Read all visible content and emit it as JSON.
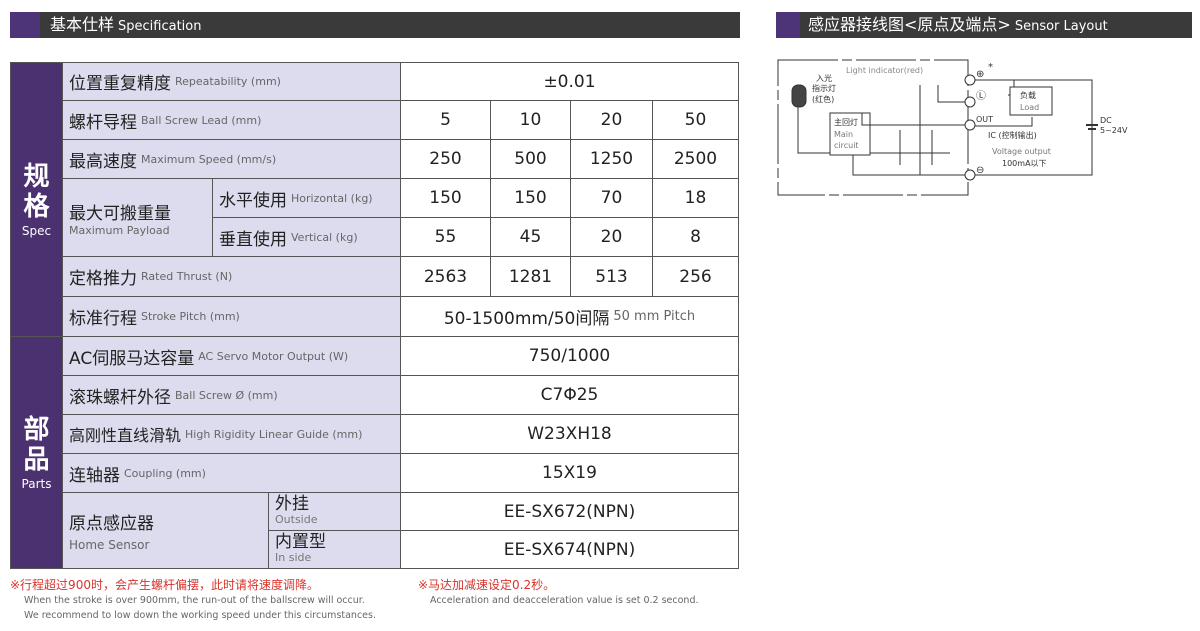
{
  "spec_header": {
    "zh": "基本仕样",
    "en": "Specification"
  },
  "sensor_header": {
    "zh": "感应器接线图<原点及端点>",
    "en": "Sensor Layout"
  },
  "groups": {
    "spec": {
      "zh1": "规",
      "zh2": "格",
      "en": "Spec"
    },
    "parts": {
      "zh1": "部",
      "zh2": "品",
      "en": "Parts"
    }
  },
  "rows": {
    "repeat": {
      "zh": "位置重复精度",
      "en": "Repeatability (mm)",
      "value": "±0.01"
    },
    "lead": {
      "zh": "螺杆导程",
      "en": "Ball Screw Lead (mm)",
      "values": [
        "5",
        "10",
        "20",
        "50"
      ]
    },
    "speed": {
      "zh": "最高速度",
      "en": "Maximum Speed (mm/s)",
      "values": [
        "250",
        "500",
        "1250",
        "2500"
      ]
    },
    "payload": {
      "zh": "最大可搬重量",
      "en": "Maximum Payload",
      "horizontal": {
        "zh": "水平使用",
        "en": "Horizontal (kg)",
        "values": [
          "150",
          "150",
          "70",
          "18"
        ]
      },
      "vertical": {
        "zh": "垂直使用",
        "en": "Vertical (kg)",
        "values": [
          "55",
          "45",
          "20",
          "8"
        ]
      }
    },
    "thrust": {
      "zh": "定格推力",
      "en": "Rated Thrust (N)",
      "values": [
        "2563",
        "1281",
        "513",
        "256"
      ]
    },
    "stroke": {
      "zh": "标准行程",
      "en": "Stroke Pitch (mm)",
      "value": "50-1500mm/50间隔",
      "value_en": "50 mm Pitch"
    },
    "motor": {
      "zh": "AC伺服马达容量",
      "en": "AC Servo Motor Output (W)",
      "value": "750/1000"
    },
    "screw": {
      "zh": "滚珠螺杆外径",
      "en": "Ball Screw Ø (mm)",
      "value": "C7Φ25"
    },
    "guide": {
      "zh": "高刚性直线滑轨",
      "en": "High Rigidity Linear Guide (mm)",
      "value": "W23XH18"
    },
    "coupling": {
      "zh": "连轴器",
      "en": "Coupling (mm)",
      "value": "15X19"
    },
    "home": {
      "zh": "原点感应器",
      "en": "Home Sensor",
      "outside": {
        "zh": "外挂",
        "en": "Outside",
        "value": "EE-SX672(NPN)"
      },
      "inside": {
        "zh": "内置型",
        "en": "In side",
        "value": "EE-SX674(NPN)"
      }
    }
  },
  "notes": {
    "left_zh": "※行程超过900时，会产生螺杆偏摆，此时请将速度调降。",
    "left_en1": "When the stroke is over 900mm, the run-out of the ballscrew will occur.",
    "left_en2": "We recommend to low down the working speed under this circumstances.",
    "right_zh": "※马达加减速设定0.2秒。",
    "right_en": "Acceleration and deacceleration value is set 0.2 second."
  },
  "diagram": {
    "light_indicator": "Light indicator(red)",
    "in_light1": "入光",
    "in_light2": "指示灯",
    "in_light3": "(红色)",
    "main_zh": "主回灯",
    "main_en1": "Main",
    "main_en2": "circuit",
    "load_zh": "负载",
    "load_en": "Load",
    "out": "OUT",
    "ic": "IC (控制输出)",
    "voltage": "Voltage output",
    "current": "100mA以下",
    "dc": "DC",
    "dc_v": "5~24V",
    "plus": "⊕",
    "minus": "⊖",
    "L": "Ⓛ",
    "star": "*"
  },
  "colors": {
    "purple": "#4b3170",
    "label_bg": "#dcdcee",
    "header_bg": "#3b3a3a",
    "note_red": "#d9332b"
  }
}
